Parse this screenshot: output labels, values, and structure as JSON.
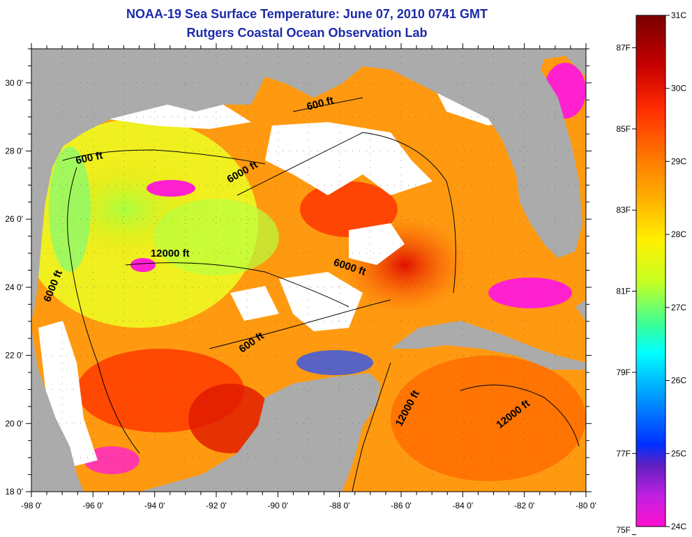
{
  "title": "NOAA-19 Sea Surface Temperature:  June 07, 2010 0741 GMT",
  "subtitle": "Rutgers Coastal Ocean Observation Lab",
  "map": {
    "lon_range": [
      -98,
      -80
    ],
    "lat_range": [
      18,
      31
    ],
    "lon_ticks": [
      {
        "value": -98,
        "label": "-98 0'"
      },
      {
        "value": -96,
        "label": "-96 0'"
      },
      {
        "value": -94,
        "label": "-94 0'"
      },
      {
        "value": -92,
        "label": "-92 0'"
      },
      {
        "value": -90,
        "label": "-90 0'"
      },
      {
        "value": -88,
        "label": "-88 0'"
      },
      {
        "value": -86,
        "label": "-86 0'"
      },
      {
        "value": -84,
        "label": "-84 0'"
      },
      {
        "value": -82,
        "label": "-82 0'"
      },
      {
        "value": -80,
        "label": "-80 0'"
      }
    ],
    "lat_ticks": [
      {
        "value": 18,
        "label": "18 0'"
      },
      {
        "value": 20,
        "label": "20 0'"
      },
      {
        "value": 22,
        "label": "22 0'"
      },
      {
        "value": 24,
        "label": "24 0'"
      },
      {
        "value": 26,
        "label": "26 0'"
      },
      {
        "value": 28,
        "label": "28 0'"
      },
      {
        "value": 30,
        "label": "30 0'"
      }
    ],
    "land_color": "#ababab",
    "cloud_color": "#ffffff",
    "contour_labels": [
      {
        "text": "600 ft",
        "lon": -96.1,
        "lat": 27.7,
        "rotate": -12
      },
      {
        "text": "600 ft",
        "lon": -88.6,
        "lat": 29.3,
        "rotate": -15
      },
      {
        "text": "6000 ft",
        "lon": -91.1,
        "lat": 27.3,
        "rotate": -30
      },
      {
        "text": "12000 ft",
        "lon": -93.5,
        "lat": 24.9,
        "rotate": 0
      },
      {
        "text": "6000 ft",
        "lon": -97.2,
        "lat": 24.0,
        "rotate": -68
      },
      {
        "text": "6000 ft",
        "lon": -87.7,
        "lat": 24.5,
        "rotate": 18
      },
      {
        "text": "600 ft",
        "lon": -90.8,
        "lat": 22.3,
        "rotate": -35
      },
      {
        "text": "12000 ft",
        "lon": -85.7,
        "lat": 20.4,
        "rotate": -62
      },
      {
        "text": "12000 ft",
        "lon": -82.3,
        "lat": 20.2,
        "rotate": -38
      }
    ]
  },
  "colorbar": {
    "celsius_labels": [
      {
        "value": 31,
        "label": "31C"
      },
      {
        "value": 30,
        "label": "30C"
      },
      {
        "value": 29,
        "label": "29C"
      },
      {
        "value": 28,
        "label": "28C"
      },
      {
        "value": 27,
        "label": "27C"
      },
      {
        "value": 26,
        "label": "26C"
      },
      {
        "value": 25,
        "label": "25C"
      },
      {
        "value": 24,
        "label": "24C"
      }
    ],
    "fahrenheit_labels": [
      {
        "value": 87,
        "label": "87F"
      },
      {
        "value": 85,
        "label": "85F"
      },
      {
        "value": 83,
        "label": "83F"
      },
      {
        "value": 81,
        "label": "81F"
      },
      {
        "value": 79,
        "label": "79F"
      },
      {
        "value": 77,
        "label": "77F"
      },
      {
        "value": 75,
        "label": "75F"
      }
    ],
    "range_c": [
      24,
      31
    ],
    "colors_top_to_bottom": [
      "#7a0000",
      "#c80000",
      "#ff2a00",
      "#ff7a00",
      "#ffb000",
      "#fff000",
      "#c8ff20",
      "#40ff90",
      "#00ffff",
      "#00a0ff",
      "#0030ff",
      "#6020c0",
      "#c020e0",
      "#ff10d0"
    ]
  }
}
